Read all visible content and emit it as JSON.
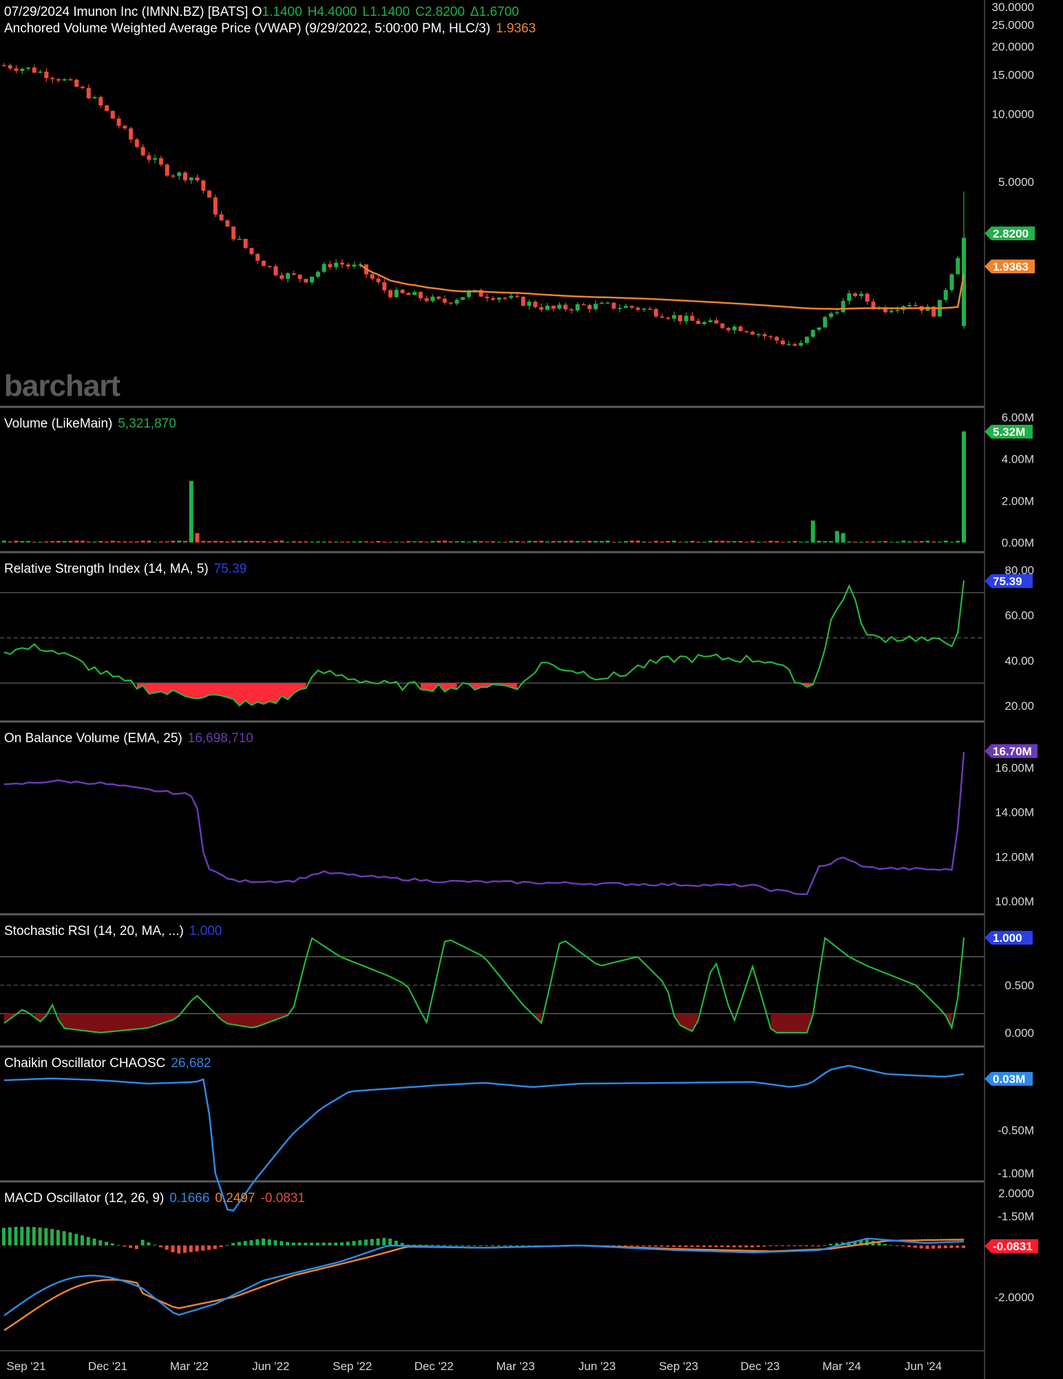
{
  "colors": {
    "up": "#1fb14a",
    "down": "#f04a3a",
    "vwap": "#f0832c",
    "rsi": "#22b83a",
    "rsiHigh": "#2a3fe6",
    "rsiLow": "#ff2a3a",
    "obv": "#6a3ab8",
    "chaikin": "#2b8ae6",
    "macd": "#2b8ae6",
    "signal": "#f0832c",
    "divider": "#5c5c5c",
    "grid": "#6b6b6b"
  },
  "header": {
    "line1": {
      "prefix": "07/29/2024 Imunon Inc (IMNN.BZ) [BATS] O",
      "open": "1.1400",
      "high": "H4.4000",
      "low": "L1.1400",
      "close": "C2.8200",
      "change": "Δ1.6700"
    },
    "line2": {
      "label": "Anchored Volume Weighted Average Price (VWAP)  (9/29/2022, 5:00:00 PM, HLC/3)",
      "value": "1.9363"
    }
  },
  "watermark": "barchart",
  "price_tags": {
    "close": "2.8200",
    "vwap": "1.9363"
  },
  "panels": {
    "volume": {
      "label": "Volume  (LikeMain)",
      "value": "5,321,870",
      "tag": "5.32M",
      "ticks": [
        "6.00M",
        "4.00M",
        "2.00M",
        "0.00M"
      ]
    },
    "rsi": {
      "label": "Relative Strength Index  (14, MA, 5)",
      "value": "75.39",
      "tag": "75.39",
      "ticks": [
        "80.00",
        "60.00",
        "40.00",
        "20.00"
      ]
    },
    "obv": {
      "label": "On Balance Volume  (EMA, 25)",
      "value": "16,698,710",
      "tag": "16.70M",
      "ticks": [
        "16.00M",
        "14.00M",
        "12.00M",
        "10.00M"
      ]
    },
    "stochrsi": {
      "label": "Stochastic RSI  (14, 20, MA, ...)",
      "value": "1.000",
      "tag": "1.000",
      "ticks": [
        "0.500",
        "0.000"
      ]
    },
    "chaikin": {
      "label": "Chaikin Oscillator CHAOSC",
      "value": "26,682",
      "tag": "0.03M",
      "ticks": [
        "-0.50M",
        "-1.00M",
        "-1.50M"
      ]
    },
    "macd": {
      "label": "MACD Oscillator  (12, 26, 9)",
      "macd": "0.1666",
      "signal": "0.2497",
      "hist": "-0.0831",
      "tag": "-0.0831",
      "ticks": [
        "2.0000",
        "-2.0000"
      ]
    }
  },
  "price_axis_ticks": [
    "30.0000",
    "25.0000",
    "20.0000",
    "15.0000",
    "10.0000",
    "5.0000"
  ],
  "x_labels": [
    "Sep '21",
    "Dec '21",
    "Mar '22",
    "Jun '22",
    "Sep '22",
    "Dec '22",
    "Mar '23",
    "Jun '23",
    "Sep '23",
    "Dec '23",
    "Mar '24",
    "Jun '24"
  ],
  "chart_data": {
    "type": "candlestick",
    "title": "07/29/2024 Imunon Inc (IMNN.BZ) [BATS]",
    "x_range": [
      "Aug '21",
      "Jul '24"
    ],
    "price_scale": "log",
    "price_ylim": [
      0.8,
      30
    ],
    "price_path": [
      [
        "Aug '21",
        16.5
      ],
      [
        "Sep '21",
        15.8
      ],
      [
        "Oct '21",
        14.5
      ],
      [
        "Nov '21",
        12.5
      ],
      [
        "Dec '21",
        9.5
      ],
      [
        "Jan '22",
        6.8
      ],
      [
        "Feb '22",
        5.5
      ],
      [
        "Mar '22",
        5.2
      ],
      [
        "Apr '22",
        3.2
      ],
      [
        "May '22",
        2.4
      ],
      [
        "Jun '22",
        1.95
      ],
      [
        "Jul '22",
        1.85
      ],
      [
        "Aug '22",
        2.2
      ],
      [
        "Sep '22",
        2.05
      ],
      [
        "Oct '22",
        1.6
      ],
      [
        "Nov '22",
        1.55
      ],
      [
        "Dec '22",
        1.45
      ],
      [
        "Jan '23",
        1.6
      ],
      [
        "Feb '23",
        1.55
      ],
      [
        "Mar '23",
        1.45
      ],
      [
        "Apr '23",
        1.35
      ],
      [
        "May '23",
        1.4
      ],
      [
        "Jun '23",
        1.4
      ],
      [
        "Jul '23",
        1.38
      ],
      [
        "Aug '23",
        1.3
      ],
      [
        "Sep '23",
        1.2
      ],
      [
        "Oct '23",
        1.15
      ],
      [
        "Nov '23",
        1.12
      ],
      [
        "Dec '23",
        1.0
      ],
      [
        "Jan '24",
        0.92
      ],
      [
        "Feb '24",
        1.25
      ],
      [
        "Mar '24",
        1.6
      ],
      [
        "Apr '24",
        1.35
      ],
      [
        "May '24",
        1.45
      ],
      [
        "Jun '24",
        1.3
      ],
      [
        "Jul '24",
        2.82
      ]
    ],
    "vwap_anchor": "9/29/2022",
    "vwap_last": 1.9363,
    "last_close": 2.82,
    "volume_last": 5321870,
    "volume_ylim": [
      0,
      6000000
    ],
    "rsi_last": 75.39,
    "rsi_ylim": [
      15,
      80
    ],
    "obv_last": 16698710,
    "obv_ylim": [
      9.8,
      16.8
    ],
    "stochrsi_last": 1.0,
    "chaikin_last": 26682,
    "macd_last": {
      "macd": 0.1666,
      "signal": 0.2497,
      "hist": -0.0831
    }
  }
}
